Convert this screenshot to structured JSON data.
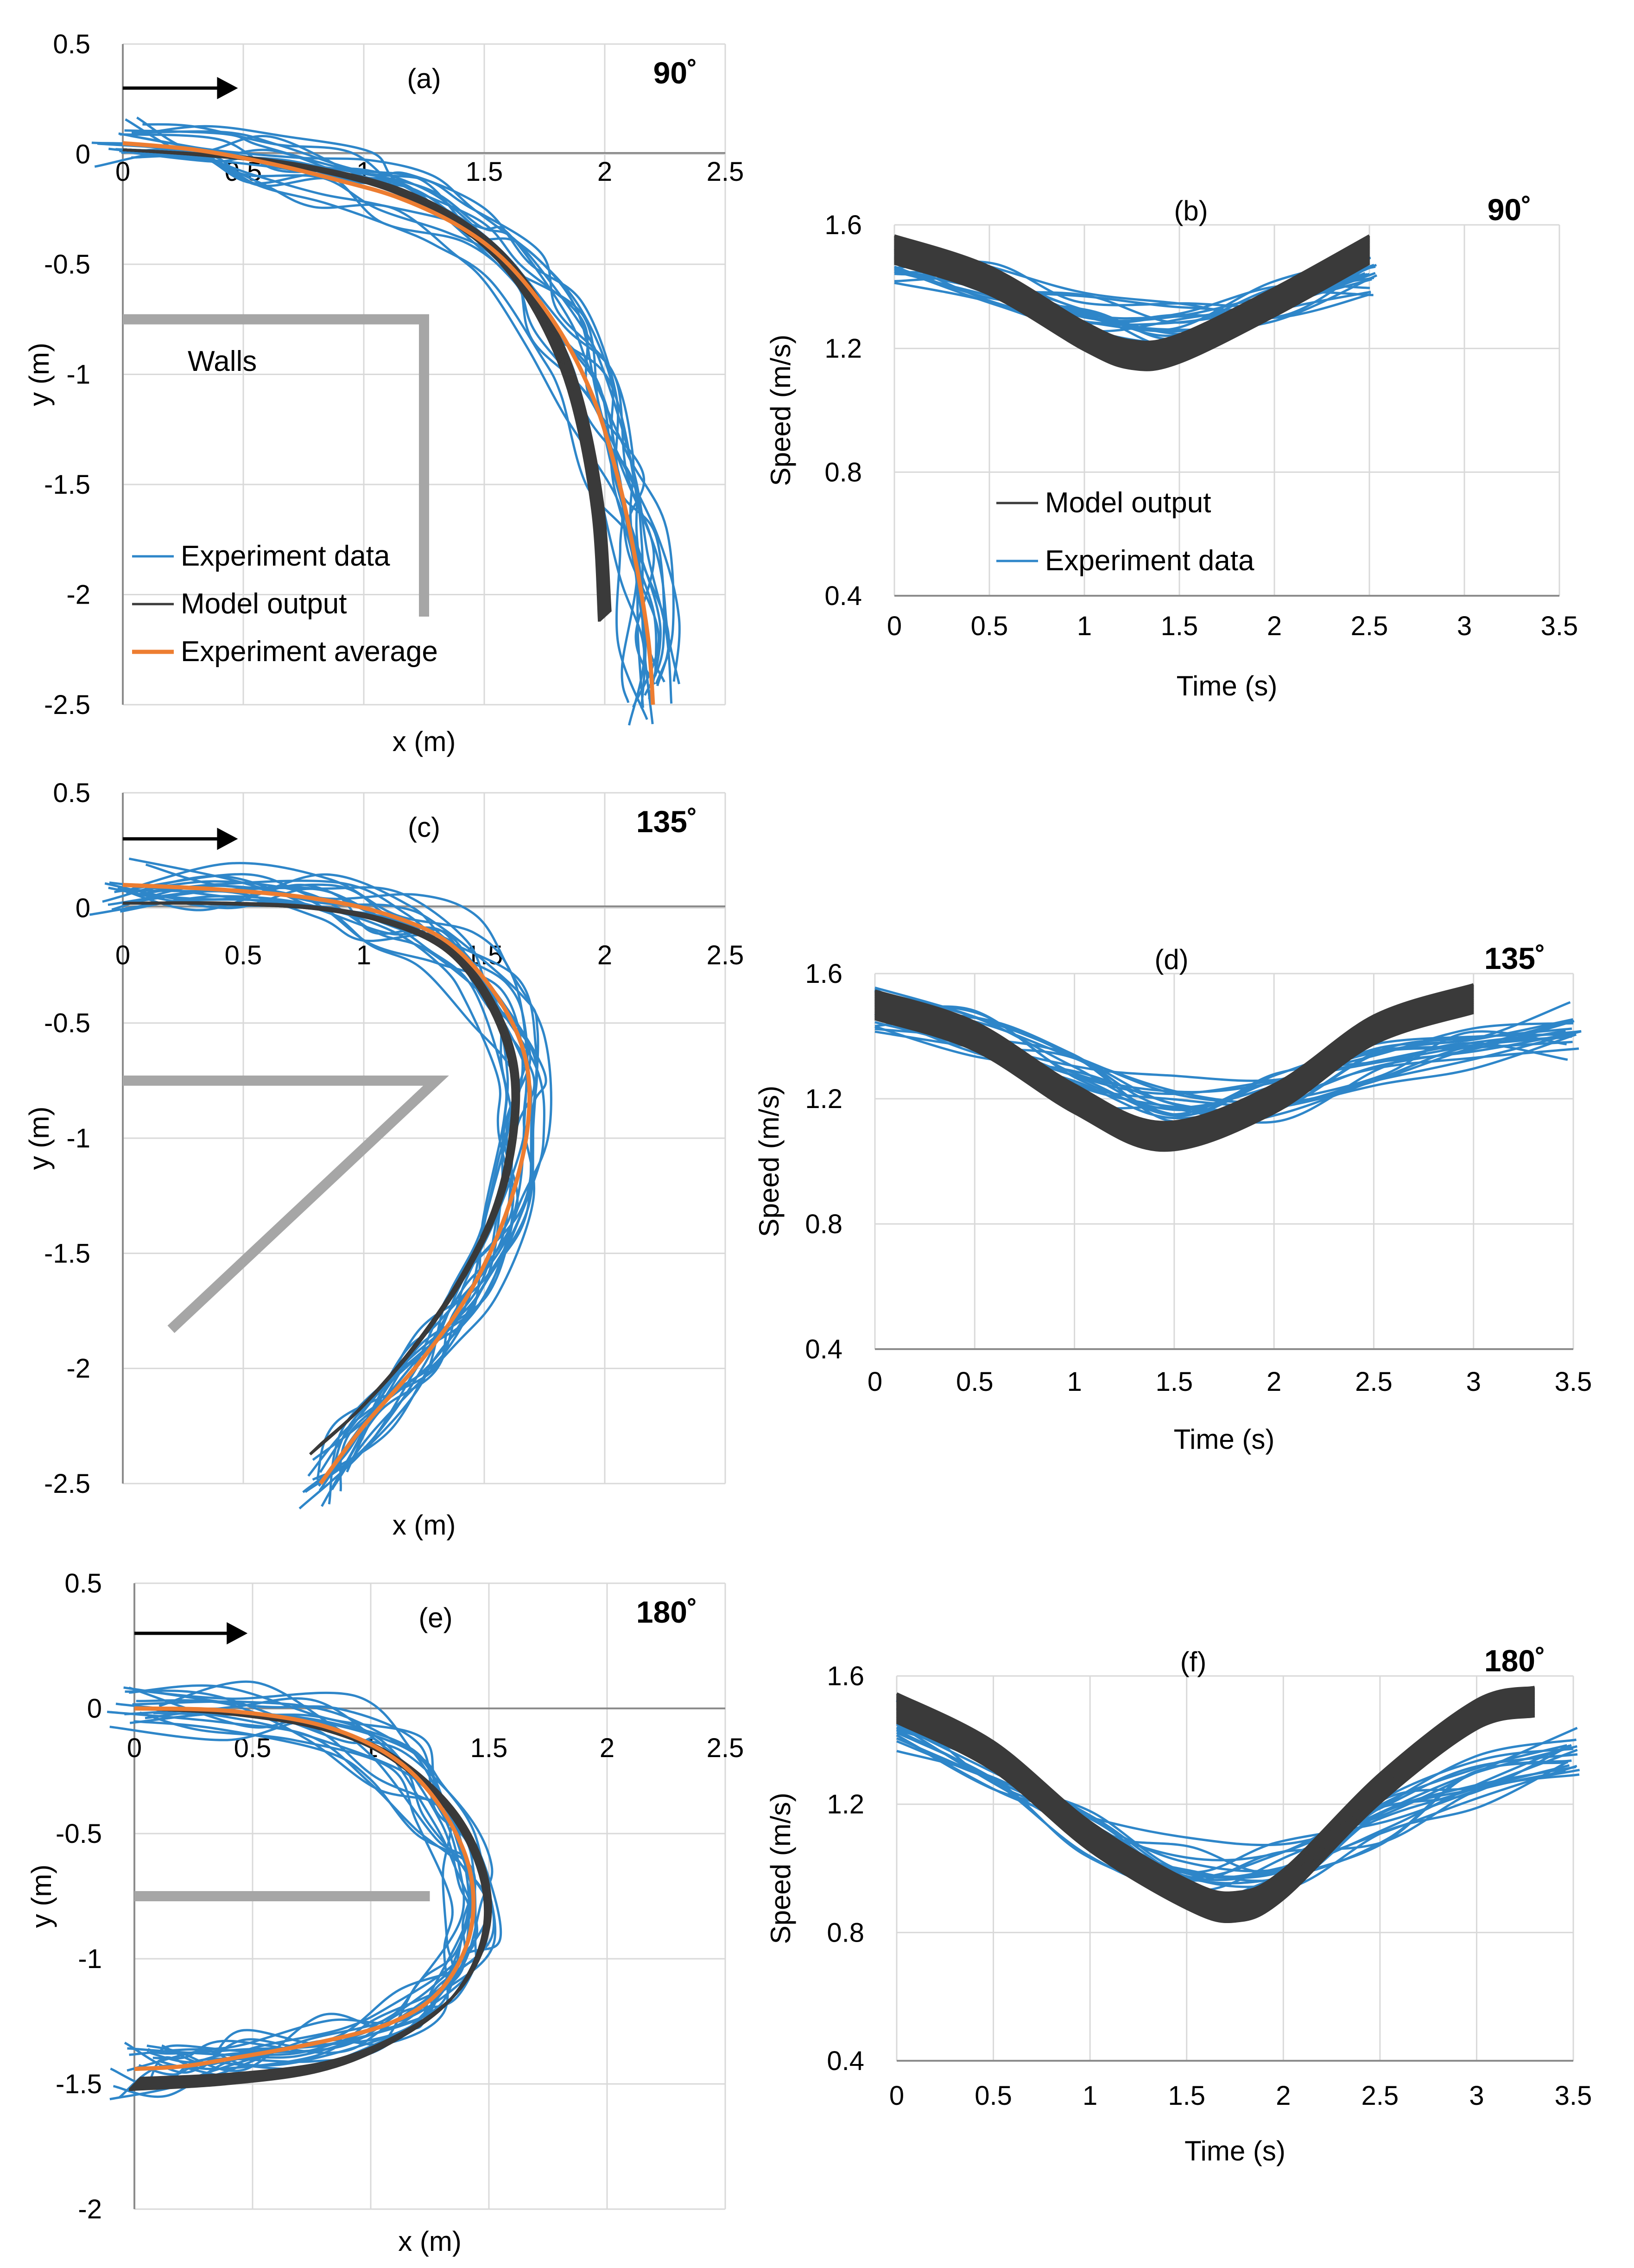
{
  "colors": {
    "experiment": "#2E86C9",
    "model": "#3A3A3A",
    "average": "#ED7D31",
    "walls": "#A6A6A6",
    "grid": "#D9D9D9",
    "arrow": "#000000"
  },
  "chart_data": [
    {
      "type": "line",
      "id": "a",
      "panel_label": "(a)",
      "angle_label": "90˚",
      "xlabel": "x (m)",
      "ylabel": "y (m)",
      "xlim": [
        0,
        2.5
      ],
      "ylim": [
        -2.5,
        0.5
      ],
      "xticks": [
        "0",
        "0.5",
        "1",
        "1.5",
        "2",
        "2.5"
      ],
      "yticks": [
        "0.5",
        "0",
        "-0.5",
        "-1",
        "-1.5",
        "-2",
        "-2.5"
      ],
      "grid": true,
      "legend": [
        "Experiment data",
        "Model output",
        "Experiment average"
      ],
      "annotation": "Walls",
      "walls": [
        [
          [
            0,
            -0.75
          ],
          [
            1.25,
            -0.75
          ],
          [
            1.25,
            -2.1
          ]
        ]
      ],
      "series": [
        {
          "name": "Experiment average",
          "x": [
            0,
            0.3,
            0.6,
            0.9,
            1.15,
            1.4,
            1.6,
            1.8,
            1.95,
            2.05,
            2.12,
            2.18,
            2.2
          ],
          "y": [
            0.05,
            0.02,
            -0.04,
            -0.12,
            -0.2,
            -0.33,
            -0.5,
            -0.78,
            -1.1,
            -1.45,
            -1.8,
            -2.2,
            -2.5
          ]
        },
        {
          "name": "Model output",
          "x": [
            0,
            0.3,
            0.6,
            0.9,
            1.15,
            1.38,
            1.58,
            1.75,
            1.88,
            1.97,
            2.0
          ],
          "y": [
            0.02,
            0.0,
            -0.03,
            -0.09,
            -0.17,
            -0.3,
            -0.48,
            -0.75,
            -1.1,
            -1.6,
            -2.1
          ]
        }
      ]
    },
    {
      "type": "line",
      "id": "b",
      "panel_label": "(b)",
      "angle_label": "90˚",
      "xlabel": "Time (s)",
      "ylabel": "Speed (m/s)",
      "xlim": [
        0,
        3.5
      ],
      "ylim": [
        0.4,
        1.6
      ],
      "xticks": [
        "0",
        "0.5",
        "1",
        "1.5",
        "2",
        "2.5",
        "3",
        "3.5"
      ],
      "yticks": [
        "1.6",
        "1.2",
        "0.8",
        "0.4"
      ],
      "grid": true,
      "legend": [
        "Model output",
        "Experiment data"
      ],
      "series": [
        {
          "name": "Model output",
          "x": [
            0,
            0.5,
            1.0,
            1.25,
            1.5,
            2.0,
            2.5
          ],
          "y": [
            1.52,
            1.42,
            1.24,
            1.18,
            1.2,
            1.35,
            1.52
          ]
        },
        {
          "name": "Experiment data",
          "x": [
            0,
            0.5,
            1.0,
            1.5,
            2.0,
            2.5
          ],
          "y": [
            1.48,
            1.4,
            1.3,
            1.28,
            1.33,
            1.42
          ]
        }
      ]
    },
    {
      "type": "line",
      "id": "c",
      "panel_label": "(c)",
      "angle_label": "135˚",
      "xlabel": "x (m)",
      "ylabel": "y (m)",
      "xlim": [
        0,
        2.5
      ],
      "ylim": [
        -2.5,
        0.5
      ],
      "xticks": [
        "0",
        "0.5",
        "1",
        "1.5",
        "2",
        "2.5"
      ],
      "yticks": [
        "0.5",
        "0",
        "-0.5",
        "-1",
        "-1.5",
        "-2",
        "-2.5"
      ],
      "grid": true,
      "walls": [
        [
          [
            0,
            -0.75
          ],
          [
            1.3,
            -0.75
          ],
          [
            0.2,
            -1.83
          ]
        ]
      ],
      "series": [
        {
          "name": "Experiment average",
          "x": [
            0,
            0.4,
            0.8,
            1.1,
            1.35,
            1.55,
            1.67,
            1.68,
            1.6,
            1.45,
            1.25,
            1.0,
            0.82
          ],
          "y": [
            0.1,
            0.08,
            0.04,
            -0.03,
            -0.15,
            -0.38,
            -0.65,
            -0.95,
            -1.3,
            -1.65,
            -1.95,
            -2.25,
            -2.5
          ]
        },
        {
          "name": "Model output",
          "x": [
            0,
            0.4,
            0.8,
            1.1,
            1.35,
            1.52,
            1.62,
            1.62,
            1.55,
            1.4,
            1.2,
            0.98,
            0.8
          ],
          "y": [
            0.02,
            0.02,
            0.0,
            -0.06,
            -0.18,
            -0.4,
            -0.68,
            -0.98,
            -1.3,
            -1.62,
            -1.92,
            -2.18,
            -2.35
          ]
        }
      ]
    },
    {
      "type": "line",
      "id": "d",
      "panel_label": "(d)",
      "angle_label": "135˚",
      "xlabel": "Time (s)",
      "ylabel": "Speed (m/s)",
      "xlim": [
        0,
        3.5
      ],
      "ylim": [
        0.4,
        1.6
      ],
      "xticks": [
        "0",
        "0.5",
        "1",
        "1.5",
        "2",
        "2.5",
        "3",
        "3.5"
      ],
      "yticks": [
        "1.6",
        "1.2",
        "0.8",
        "0.4"
      ],
      "grid": true,
      "series": [
        {
          "name": "Model output",
          "x": [
            0,
            0.5,
            1.0,
            1.45,
            2.0,
            2.5,
            3.0
          ],
          "y": [
            1.5,
            1.4,
            1.2,
            1.08,
            1.2,
            1.42,
            1.52
          ]
        },
        {
          "name": "Experiment data",
          "x": [
            0,
            0.5,
            1.0,
            1.5,
            2.0,
            2.5,
            3.0,
            3.5
          ],
          "y": [
            1.47,
            1.4,
            1.28,
            1.18,
            1.2,
            1.3,
            1.38,
            1.42
          ]
        }
      ]
    },
    {
      "type": "line",
      "id": "e",
      "panel_label": "(e)",
      "angle_label": "180˚",
      "xlabel": "x (m)",
      "ylabel": "y (m)",
      "xlim": [
        0,
        2.5
      ],
      "ylim": [
        -2,
        0.5
      ],
      "xticks": [
        "0",
        "0.5",
        "1",
        "1.5",
        "2",
        "2.5"
      ],
      "yticks": [
        "0.5",
        "0",
        "-0.5",
        "-1",
        "-1.5",
        "-2"
      ],
      "grid": true,
      "walls": [
        [
          [
            0,
            -0.75
          ],
          [
            1.25,
            -0.75
          ]
        ]
      ],
      "series": [
        {
          "name": "Experiment average",
          "x": [
            0,
            0.4,
            0.8,
            1.1,
            1.3,
            1.42,
            1.42,
            1.3,
            1.1,
            0.8,
            0.4,
            0.2,
            0
          ],
          "y": [
            0.0,
            -0.01,
            -0.07,
            -0.2,
            -0.4,
            -0.65,
            -0.9,
            -1.12,
            -1.25,
            -1.33,
            -1.4,
            -1.43,
            -1.44
          ]
        },
        {
          "name": "Model output",
          "x": [
            0,
            0.4,
            0.8,
            1.1,
            1.35,
            1.48,
            1.48,
            1.35,
            1.1,
            0.8,
            0.4,
            0
          ],
          "y": [
            0.0,
            -0.02,
            -0.08,
            -0.2,
            -0.42,
            -0.68,
            -0.92,
            -1.15,
            -1.32,
            -1.43,
            -1.48,
            -1.5
          ]
        }
      ]
    },
    {
      "type": "line",
      "id": "f",
      "panel_label": "(f)",
      "angle_label": "180˚",
      "xlabel": "Time (s)",
      "ylabel": "Speed (m/s)",
      "xlim": [
        0,
        3.5
      ],
      "ylim": [
        0.4,
        1.6
      ],
      "xticks": [
        "0",
        "0.5",
        "1",
        "1.5",
        "2",
        "2.5",
        "3",
        "3.5"
      ],
      "yticks": [
        "1.6",
        "1.2",
        "0.8",
        "0.4"
      ],
      "grid": true,
      "series": [
        {
          "name": "Model output",
          "x": [
            0,
            0.5,
            1.0,
            1.5,
            1.75,
            2.0,
            2.5,
            3.0,
            3.3
          ],
          "y": [
            1.5,
            1.35,
            1.1,
            0.92,
            0.88,
            0.95,
            1.25,
            1.48,
            1.52
          ]
        },
        {
          "name": "Experiment data",
          "x": [
            0,
            0.5,
            1.0,
            1.5,
            2.0,
            2.5,
            3.0,
            3.5
          ],
          "y": [
            1.45,
            1.3,
            1.12,
            1.0,
            1.02,
            1.15,
            1.28,
            1.35
          ]
        }
      ]
    }
  ]
}
